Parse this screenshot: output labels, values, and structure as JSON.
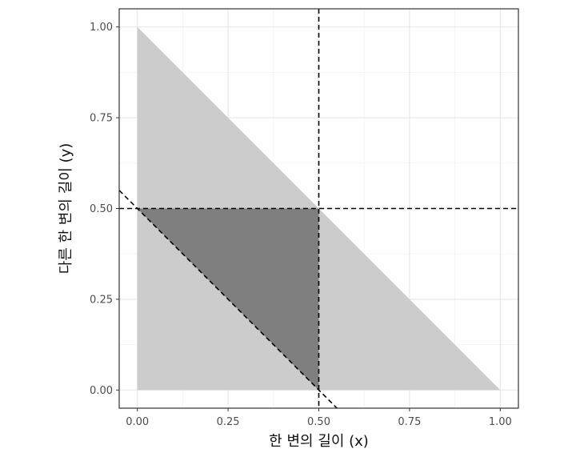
{
  "chart_data": {
    "type": "area",
    "title": "",
    "xlabel": "한 변의 길이 (x)",
    "ylabel": "다른 한 변의 길이 (y)",
    "xlim": [
      -0.05,
      1.05
    ],
    "ylim": [
      -0.05,
      1.05
    ],
    "x_ticks": [
      0.0,
      0.25,
      0.5,
      0.75,
      1.0
    ],
    "y_ticks": [
      0.0,
      0.25,
      0.5,
      0.75,
      1.0
    ],
    "x_tick_labels": [
      "0.00",
      "0.25",
      "0.50",
      "0.75",
      "1.00"
    ],
    "y_tick_labels": [
      "0.00",
      "0.25",
      "0.50",
      "0.75",
      "1.00"
    ],
    "grid": true,
    "legend": "none",
    "regions": [
      {
        "name": "feasible-region",
        "color": "#cccccc",
        "points": [
          [
            0,
            0
          ],
          [
            1,
            0
          ],
          [
            0,
            1
          ]
        ]
      },
      {
        "name": "triangle-region",
        "color": "#7f7f7f",
        "points": [
          [
            0,
            0.5
          ],
          [
            0.5,
            0.5
          ],
          [
            0.5,
            0
          ]
        ]
      }
    ],
    "reference_lines": [
      {
        "name": "vline-x-0.5",
        "kind": "vertical",
        "x": 0.5
      },
      {
        "name": "hline-y-0.5",
        "kind": "horizontal",
        "y": 0.5
      },
      {
        "name": "line-x-plus-y-0.5",
        "kind": "sloped",
        "slope": -1,
        "intercept": 0.5
      }
    ]
  }
}
